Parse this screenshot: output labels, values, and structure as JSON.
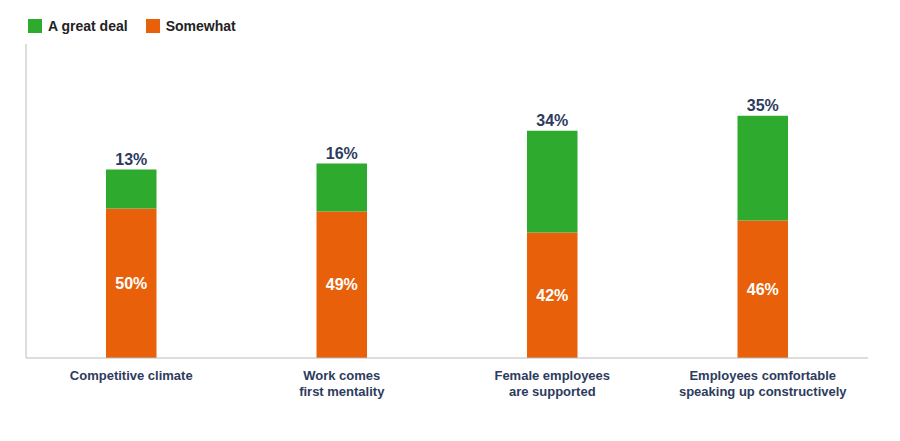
{
  "chart_data": {
    "type": "bar",
    "categories": [
      "Competitive climate",
      "Work comes\nfirst mentality",
      "Female employees\nare supported",
      "Employees comfortable\nspeaking up constructively"
    ],
    "series": [
      {
        "name": "Somewhat",
        "color": "#E8610A",
        "values": [
          50,
          49,
          42,
          46
        ],
        "value_labels": [
          "50%",
          "49%",
          "42%",
          "46%"
        ]
      },
      {
        "name": "A great deal",
        "color": "#2EAA2E",
        "values": [
          13,
          16,
          34,
          35
        ],
        "value_labels": [
          "13%",
          "16%",
          "34%",
          "35%"
        ]
      }
    ],
    "stacked": true,
    "data_labels": true,
    "ylim": [
      0,
      105
    ],
    "grid": false,
    "legend": "upper left",
    "tick_labels": "x"
  }
}
